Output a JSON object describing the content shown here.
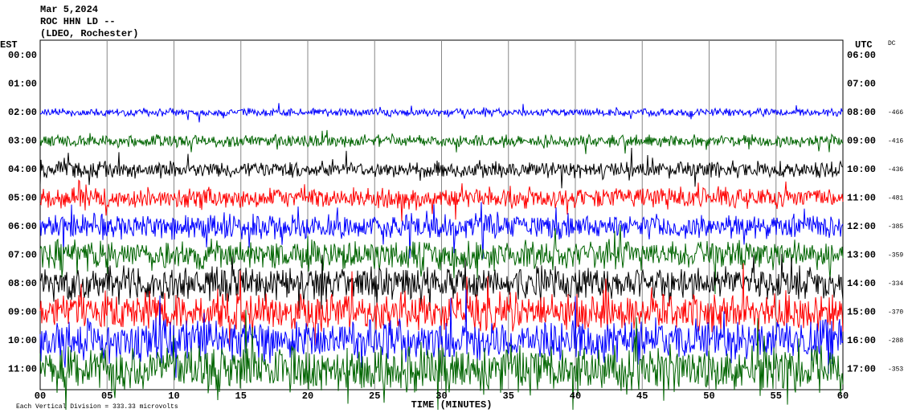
{
  "header": {
    "lines": [
      "Mar 5,2024",
      "ROC HHN LD --",
      "(LDEO, Rochester)"
    ]
  },
  "left_zone": "EST",
  "right_zone": "UTC",
  "dc_label": "DC",
  "rows": [
    {
      "est": "00:00",
      "utc": "06:00"
    },
    {
      "est": "01:00",
      "utc": "07:00"
    },
    {
      "est": "02:00",
      "utc": "08:00",
      "dc": "-466",
      "trace_color": "#0000ff"
    },
    {
      "est": "03:00",
      "utc": "09:00",
      "dc": "-416",
      "trace_color": "#006400"
    },
    {
      "est": "04:00",
      "utc": "10:00",
      "dc": "-436",
      "trace_color": "#000000"
    },
    {
      "est": "05:00",
      "utc": "11:00",
      "dc": "-481",
      "trace_color": "#ff0000"
    },
    {
      "est": "06:00",
      "utc": "12:00",
      "dc": "-385",
      "trace_color": "#0000ff"
    },
    {
      "est": "07:00",
      "utc": "13:00",
      "dc": "-359",
      "trace_color": "#006400"
    },
    {
      "est": "08:00",
      "utc": "14:00",
      "dc": "-334",
      "trace_color": "#000000"
    },
    {
      "est": "09:00",
      "utc": "15:00",
      "dc": "-370",
      "trace_color": "#ff0000"
    },
    {
      "est": "10:00",
      "utc": "16:00",
      "dc": "-288",
      "trace_color": "#0000ff"
    },
    {
      "est": "11:00",
      "utc": "17:00",
      "dc": "-353",
      "trace_color": "#006400"
    }
  ],
  "time_ticks": [
    "00",
    "05",
    "10",
    "15",
    "20",
    "25",
    "30",
    "35",
    "40",
    "45",
    "50",
    "55",
    "60"
  ],
  "x_label": "TIME (MINUTES)",
  "footer": "Each Vertical Division = 333.33 microvolts"
}
